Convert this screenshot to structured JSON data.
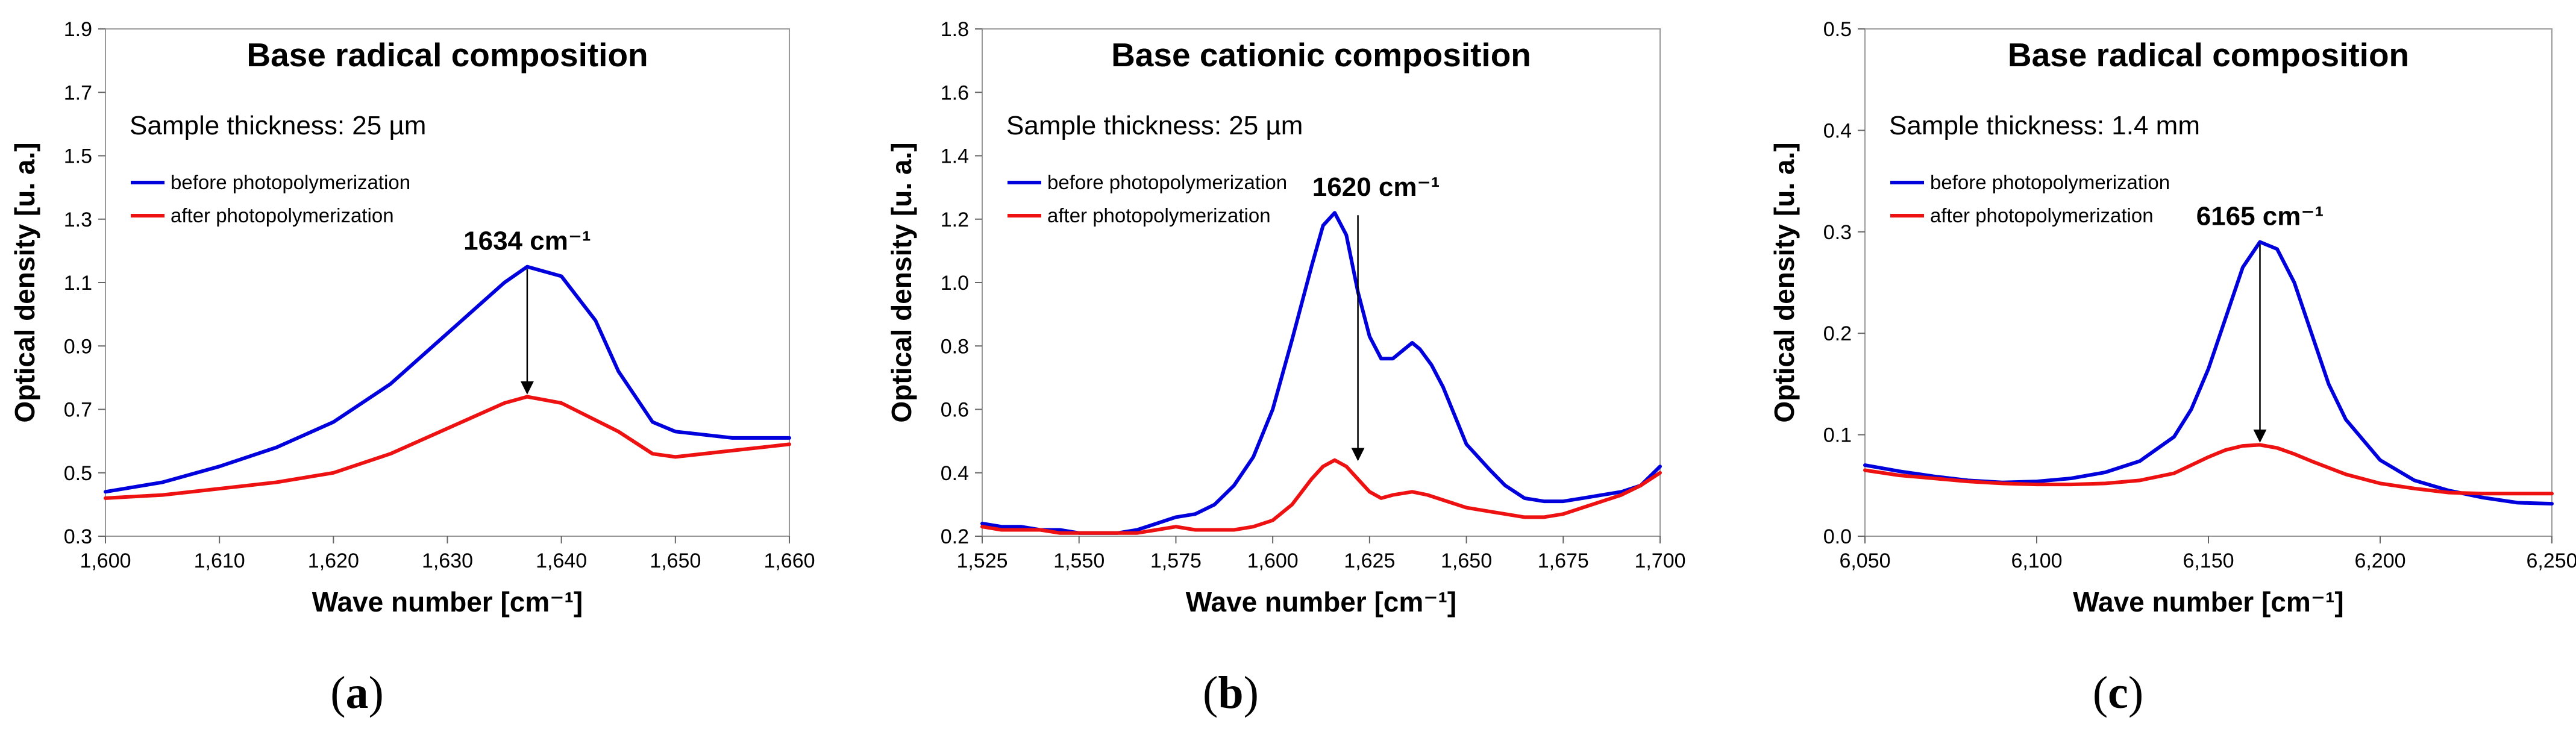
{
  "colors": {
    "before": "#0000dd",
    "after": "#ee1111"
  },
  "chart_data": [
    {
      "type": "line",
      "panel_label": "a",
      "title": "Base radical composition",
      "note": "Sample thickness: 25 µm",
      "xlabel": "Wave number [cm⁻¹]",
      "ylabel": "Optical density [u. a.]",
      "xlim": [
        1600,
        1660
      ],
      "ylim": [
        0.3,
        1.9
      ],
      "xticks": [
        1600,
        1610,
        1620,
        1630,
        1640,
        1650,
        1660
      ],
      "xtick_labels": [
        "1,600",
        "1,610",
        "1,620",
        "1,630",
        "1,640",
        "1,650",
        "1,660"
      ],
      "yticks": [
        0.3,
        0.5,
        0.7,
        0.9,
        1.1,
        1.3,
        1.5,
        1.7,
        1.9
      ],
      "ytick_labels": [
        "0.3",
        "0.5",
        "0.7",
        "0.9",
        "1.1",
        "1.3",
        "1.5",
        "1.7",
        "1.9"
      ],
      "legend": "top-left",
      "grid": false,
      "annotation": {
        "text": "1634 cm⁻¹",
        "x": 1637,
        "y_from": 1.15,
        "y_to": 0.74
      },
      "series": [
        {
          "name": "before photopolymerization",
          "color": "before",
          "x": [
            1600,
            1605,
            1610,
            1615,
            1620,
            1625,
            1630,
            1635,
            1637,
            1640,
            1643,
            1645,
            1648,
            1650,
            1655,
            1660
          ],
          "y": [
            0.44,
            0.47,
            0.52,
            0.58,
            0.66,
            0.78,
            0.94,
            1.1,
            1.15,
            1.12,
            0.98,
            0.82,
            0.66,
            0.63,
            0.61,
            0.61
          ]
        },
        {
          "name": "after photopolymerization",
          "color": "after",
          "x": [
            1600,
            1605,
            1610,
            1615,
            1620,
            1625,
            1630,
            1635,
            1637,
            1640,
            1645,
            1648,
            1650,
            1655,
            1660
          ],
          "y": [
            0.42,
            0.43,
            0.45,
            0.47,
            0.5,
            0.56,
            0.64,
            0.72,
            0.74,
            0.72,
            0.63,
            0.56,
            0.55,
            0.57,
            0.59
          ]
        }
      ]
    },
    {
      "type": "line",
      "panel_label": "b",
      "title": "Base cationic composition",
      "note": "Sample thickness: 25 µm",
      "xlabel": "Wave number [cm⁻¹]",
      "ylabel": "Optical density [u. a.]",
      "xlim": [
        1525,
        1700
      ],
      "ylim": [
        0.2,
        1.8
      ],
      "xticks": [
        1525,
        1550,
        1575,
        1600,
        1625,
        1650,
        1675,
        1700
      ],
      "xtick_labels": [
        "1,525",
        "1,550",
        "1,575",
        "1,600",
        "1,625",
        "1,650",
        "1,675",
        "1,700"
      ],
      "yticks": [
        0.2,
        0.4,
        0.6,
        0.8,
        1.0,
        1.2,
        1.4,
        1.6,
        1.8
      ],
      "ytick_labels": [
        "0.2",
        "0.4",
        "0.6",
        "0.8",
        "1.0",
        "1.2",
        "1.4",
        "1.6",
        "1.8"
      ],
      "legend": "top-left",
      "grid": false,
      "annotation": {
        "text": "1620 cm⁻¹",
        "x": 1622,
        "y_from": 1.22,
        "y_to": 0.43
      },
      "series": [
        {
          "name": "before photopolymerization",
          "color": "before",
          "x": [
            1525,
            1530,
            1535,
            1540,
            1545,
            1550,
            1555,
            1560,
            1565,
            1570,
            1575,
            1580,
            1585,
            1590,
            1595,
            1600,
            1605,
            1610,
            1613,
            1616,
            1619,
            1622,
            1625,
            1628,
            1631,
            1634,
            1636,
            1638,
            1641,
            1644,
            1647,
            1650,
            1653,
            1656,
            1660,
            1665,
            1670,
            1675,
            1680,
            1685,
            1690,
            1695,
            1700
          ],
          "y": [
            0.24,
            0.23,
            0.23,
            0.22,
            0.22,
            0.21,
            0.21,
            0.21,
            0.22,
            0.24,
            0.26,
            0.27,
            0.3,
            0.36,
            0.45,
            0.6,
            0.82,
            1.05,
            1.18,
            1.22,
            1.15,
            0.97,
            0.83,
            0.76,
            0.76,
            0.79,
            0.81,
            0.79,
            0.74,
            0.67,
            0.58,
            0.49,
            0.45,
            0.41,
            0.36,
            0.32,
            0.31,
            0.31,
            0.32,
            0.33,
            0.34,
            0.36,
            0.42
          ]
        },
        {
          "name": "after photopolymerization",
          "color": "after",
          "x": [
            1525,
            1530,
            1535,
            1540,
            1545,
            1550,
            1555,
            1560,
            1565,
            1570,
            1575,
            1580,
            1585,
            1590,
            1595,
            1600,
            1605,
            1610,
            1613,
            1616,
            1619,
            1622,
            1625,
            1628,
            1631,
            1636,
            1640,
            1645,
            1650,
            1655,
            1660,
            1665,
            1670,
            1675,
            1680,
            1685,
            1690,
            1695,
            1700
          ],
          "y": [
            0.23,
            0.22,
            0.22,
            0.22,
            0.21,
            0.21,
            0.21,
            0.21,
            0.21,
            0.22,
            0.23,
            0.22,
            0.22,
            0.22,
            0.23,
            0.25,
            0.3,
            0.38,
            0.42,
            0.44,
            0.42,
            0.38,
            0.34,
            0.32,
            0.33,
            0.34,
            0.33,
            0.31,
            0.29,
            0.28,
            0.27,
            0.26,
            0.26,
            0.27,
            0.29,
            0.31,
            0.33,
            0.36,
            0.4
          ]
        }
      ]
    },
    {
      "type": "line",
      "panel_label": "c",
      "title": "Base radical composition",
      "note": "Sample thickness: 1.4 mm",
      "xlabel": "Wave number [cm⁻¹]",
      "ylabel": "Optical density [u. a.]",
      "xlim": [
        6050,
        6250
      ],
      "ylim": [
        0.0,
        0.5
      ],
      "xticks": [
        6050,
        6100,
        6150,
        6200,
        6250
      ],
      "xtick_labels": [
        "6,050",
        "6,100",
        "6,150",
        "6,200",
        "6,250"
      ],
      "yticks": [
        0.0,
        0.1,
        0.2,
        0.3,
        0.4,
        0.5
      ],
      "ytick_labels": [
        "0.0",
        "0.1",
        "0.2",
        "0.3",
        "0.4",
        "0.5"
      ],
      "legend": "top-left",
      "grid": false,
      "annotation": {
        "text": "6165 cm⁻¹",
        "x": 6165,
        "y_from": 0.29,
        "y_to": 0.09
      },
      "series": [
        {
          "name": "before photopolymerization",
          "color": "before",
          "x": [
            6050,
            6060,
            6070,
            6080,
            6090,
            6100,
            6110,
            6120,
            6130,
            6140,
            6145,
            6150,
            6155,
            6160,
            6165,
            6170,
            6175,
            6180,
            6185,
            6190,
            6200,
            6210,
            6220,
            6230,
            6240,
            6250
          ],
          "y": [
            0.07,
            0.064,
            0.059,
            0.055,
            0.053,
            0.054,
            0.057,
            0.063,
            0.074,
            0.098,
            0.125,
            0.165,
            0.215,
            0.265,
            0.29,
            0.283,
            0.25,
            0.2,
            0.15,
            0.115,
            0.075,
            0.055,
            0.045,
            0.038,
            0.033,
            0.032
          ]
        },
        {
          "name": "after photopolymerization",
          "color": "after",
          "x": [
            6050,
            6060,
            6070,
            6080,
            6090,
            6100,
            6110,
            6120,
            6130,
            6140,
            6150,
            6155,
            6160,
            6165,
            6170,
            6175,
            6180,
            6190,
            6200,
            6210,
            6220,
            6230,
            6240,
            6250
          ],
          "y": [
            0.065,
            0.06,
            0.057,
            0.054,
            0.052,
            0.051,
            0.051,
            0.052,
            0.055,
            0.062,
            0.078,
            0.085,
            0.089,
            0.09,
            0.087,
            0.081,
            0.074,
            0.061,
            0.052,
            0.047,
            0.043,
            0.042,
            0.042,
            0.042
          ]
        }
      ]
    }
  ]
}
